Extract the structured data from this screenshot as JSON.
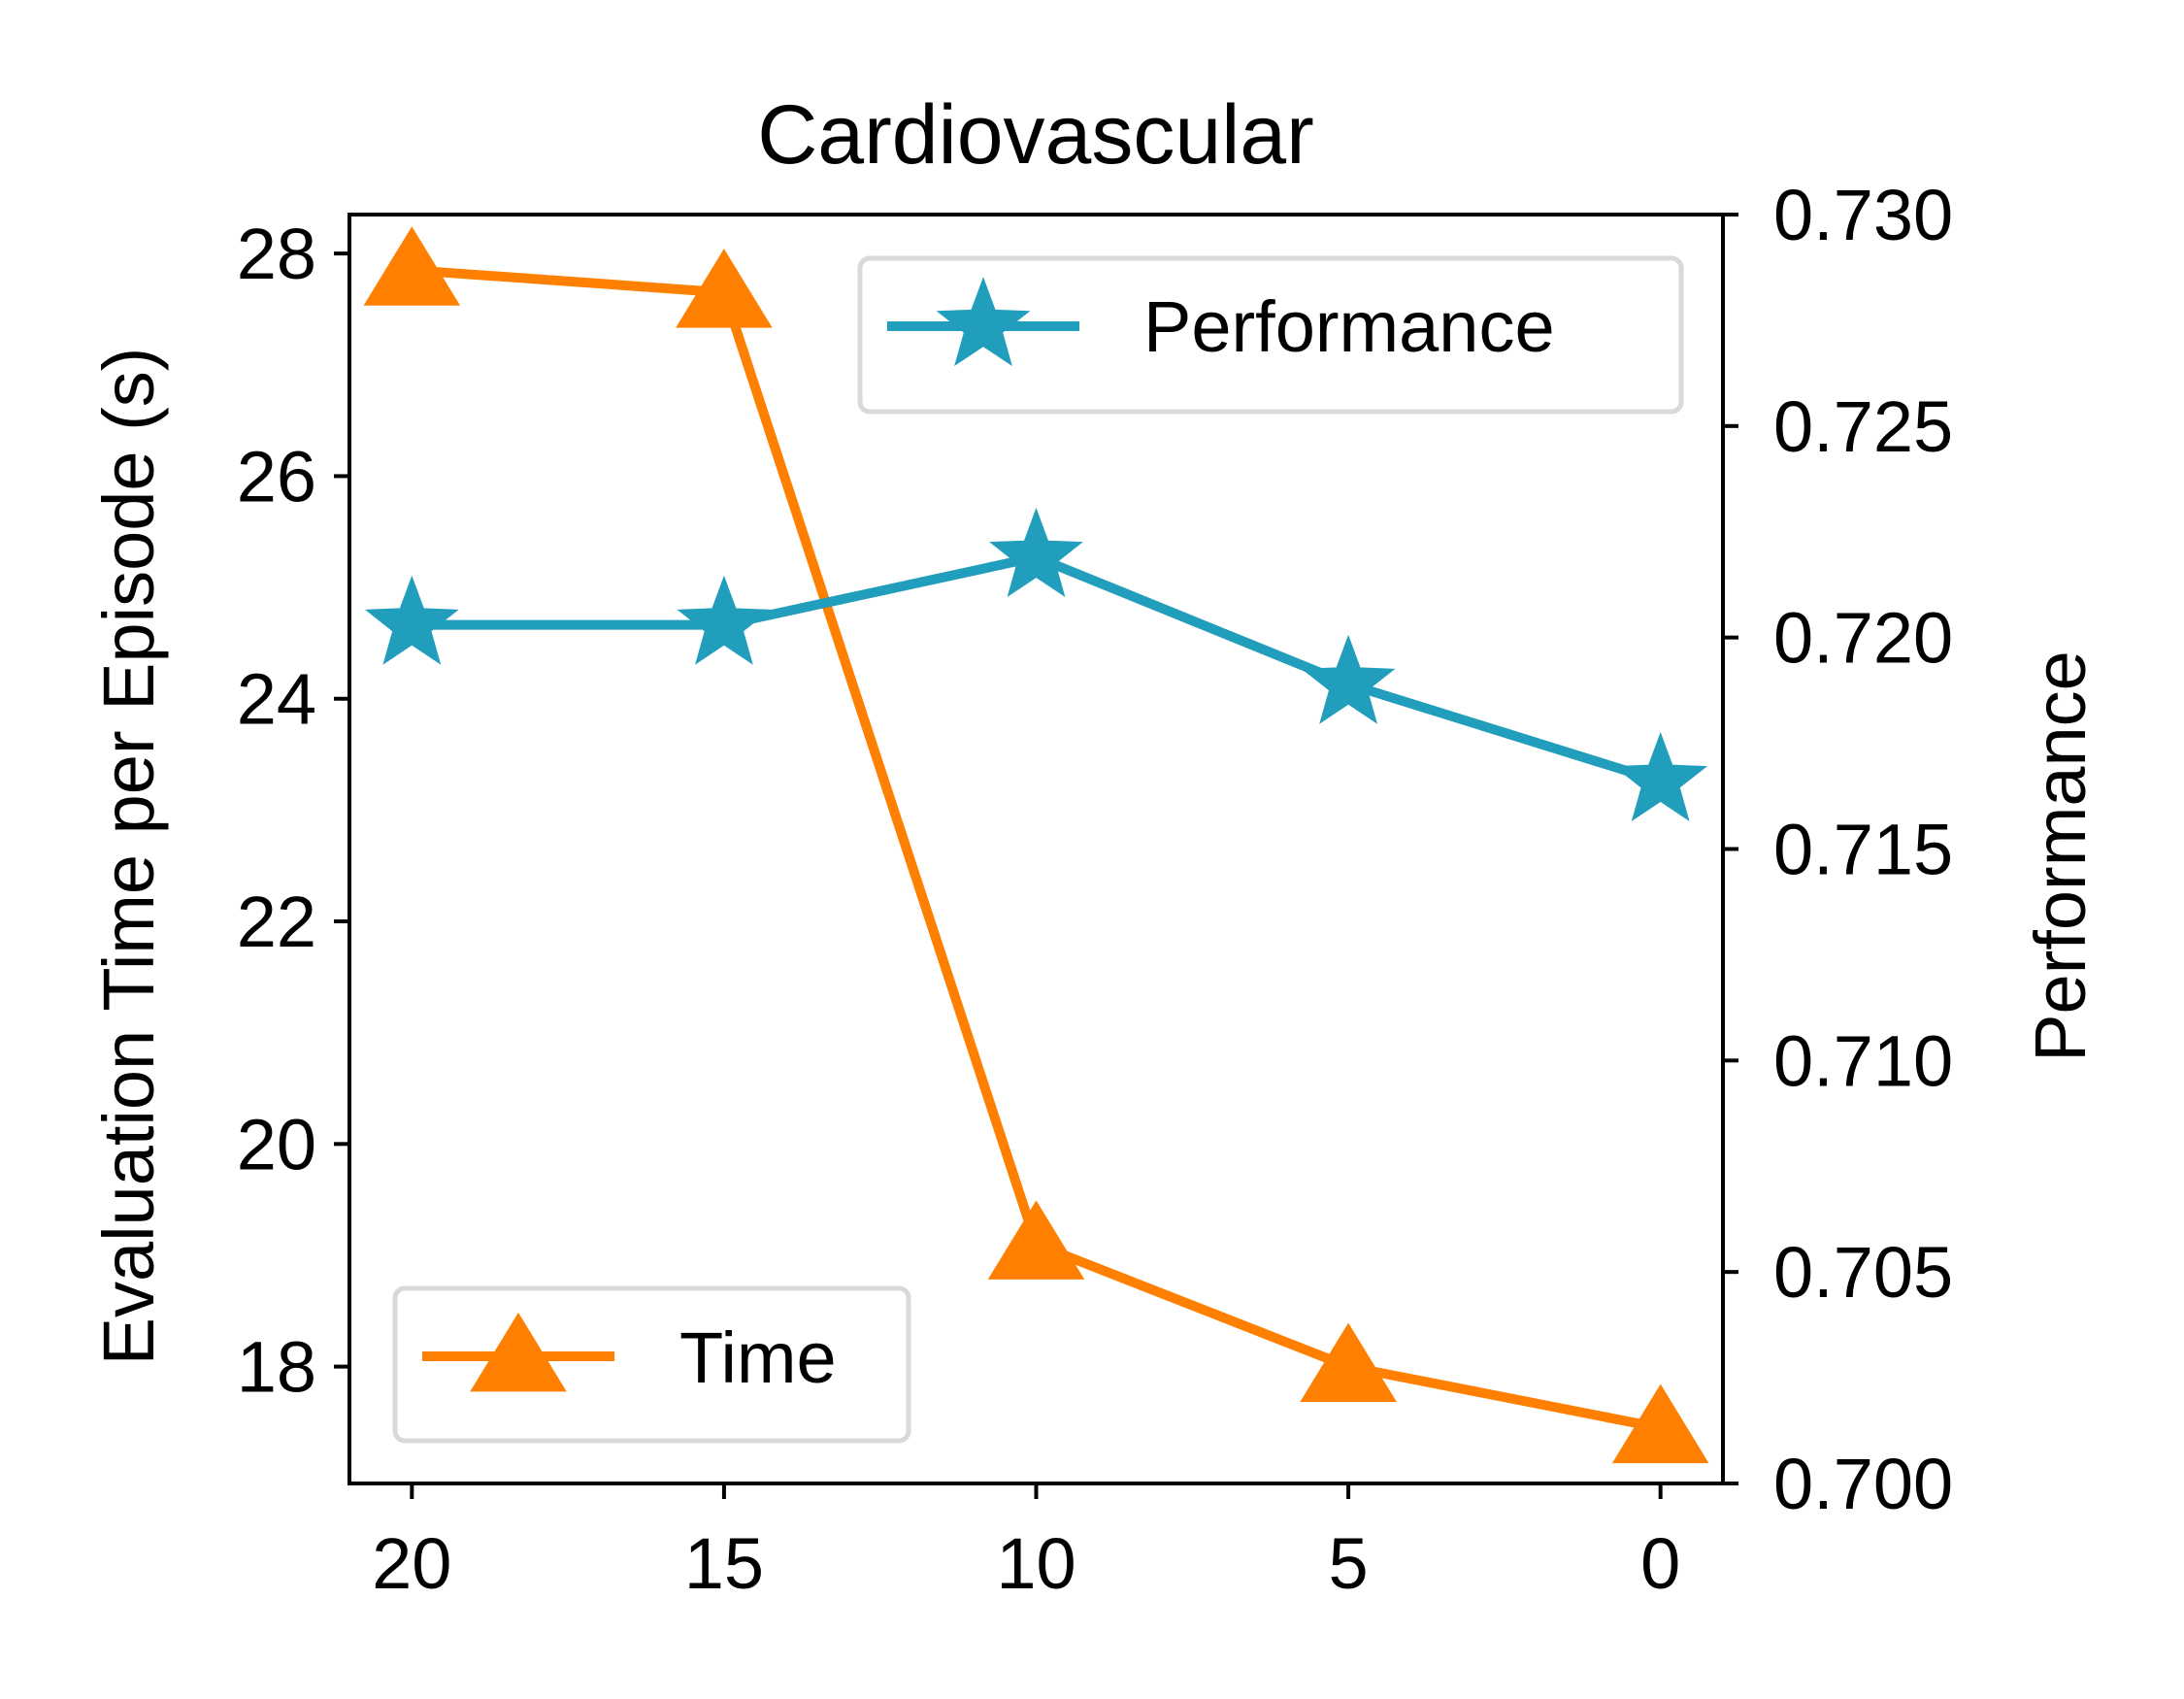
{
  "chart_data": {
    "type": "line",
    "title": "Cardiovascular",
    "xlabel": "",
    "ylabel": "Evaluation Time per Episode (s)",
    "ylabel_right": "Performance",
    "x": [
      20,
      15,
      10,
      5,
      0
    ],
    "x_ticks": [
      "20",
      "15",
      "10",
      "5",
      "0"
    ],
    "xlim": [
      21,
      -1
    ],
    "ylim": [
      16.95,
      28.35
    ],
    "ylim_right": [
      0.7,
      0.73
    ],
    "y_ticks": [
      "18",
      "20",
      "22",
      "24",
      "26",
      "28"
    ],
    "y_ticks_right": [
      "0.700",
      "0.705",
      "0.710",
      "0.715",
      "0.720",
      "0.725",
      "0.730"
    ],
    "series": [
      {
        "name": "Time",
        "axis": "left",
        "marker": "triangle",
        "color": "#ff8000",
        "values": [
          27.85,
          27.65,
          19.1,
          18.0,
          17.45
        ]
      },
      {
        "name": "Performance",
        "axis": "right",
        "marker": "star",
        "color": "#229ebd",
        "values": [
          0.7203,
          0.7203,
          0.7219,
          0.7189,
          0.7166
        ]
      }
    ],
    "legends": [
      {
        "label": "Performance",
        "series": "Performance",
        "location": "upper right"
      },
      {
        "label": "Time",
        "series": "Time",
        "location": "lower left"
      }
    ]
  }
}
